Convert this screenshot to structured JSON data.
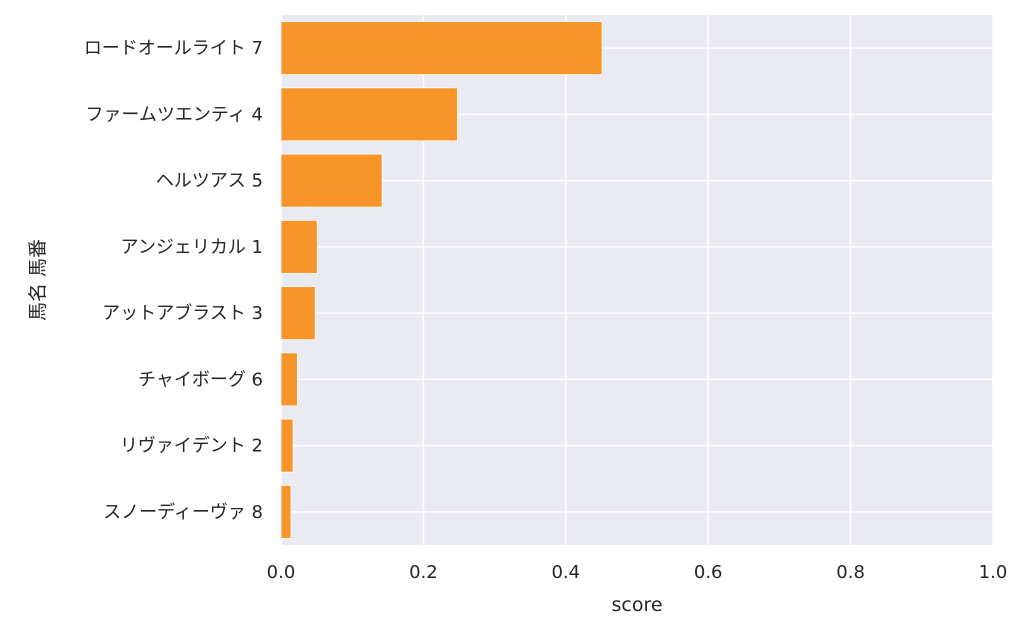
{
  "chart_data": {
    "type": "bar",
    "orientation": "horizontal",
    "xlabel": "score",
    "ylabel": "馬名 馬番",
    "xlim": [
      0,
      1
    ],
    "xticks": [
      "0.0",
      "0.2",
      "0.4",
      "0.6",
      "0.8",
      "1.0"
    ],
    "grid": true,
    "categories": [
      "ロードオールライト 7",
      "ファームツエンティ 4",
      "ヘルツアス 5",
      "アンジェリカル 1",
      "アットアブラスト 3",
      "チャイボーグ 6",
      "リヴァイデント 2",
      "スノーディーヴァ 8"
    ],
    "values": [
      0.451,
      0.248,
      0.142,
      0.051,
      0.048,
      0.023,
      0.017,
      0.014
    ],
    "colors": {
      "bar": "#f7952a",
      "bar_edge": "#ffffff",
      "plot_background": "#eaeaf2",
      "grid": "#ffffff"
    }
  }
}
